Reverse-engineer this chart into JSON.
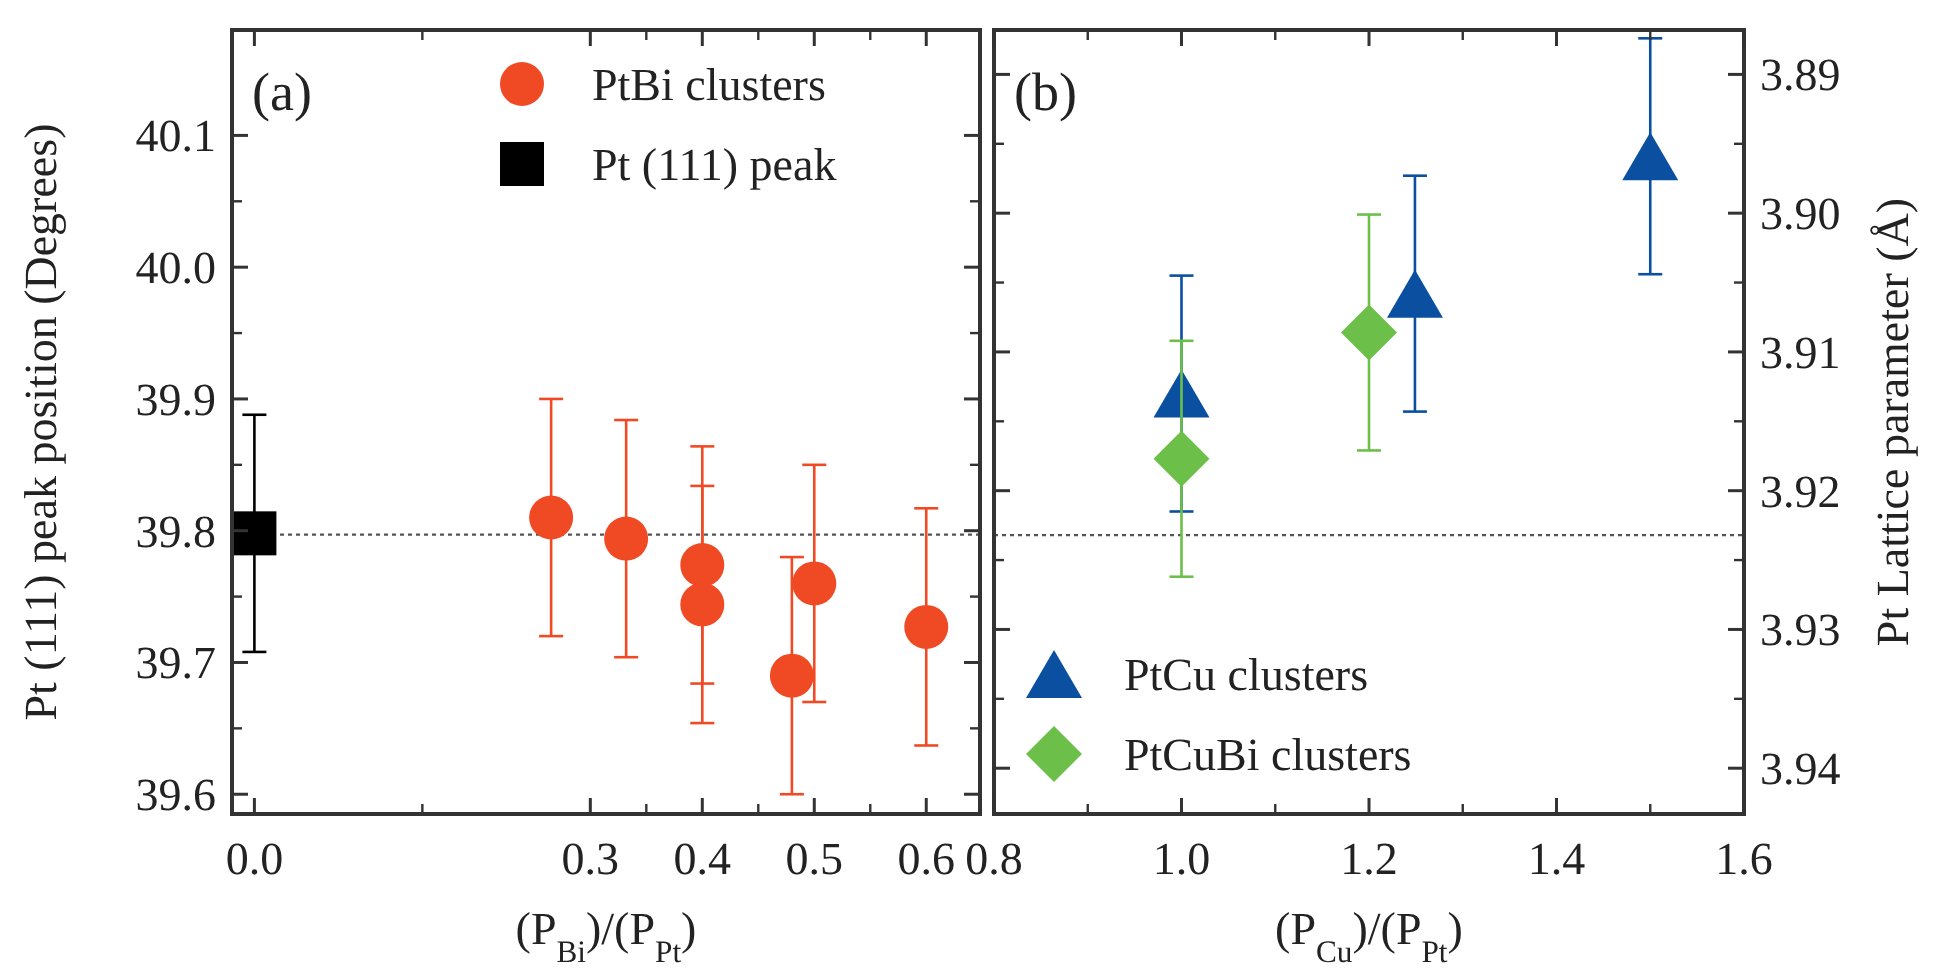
{
  "chart_data": [
    {
      "type": "scatter",
      "xlabel": "(P$_{Bi}$)/(P$_{Pt}$)",
      "ylabel": "Pt (111) peak position (Degrees)",
      "xlim": [
        -0.02,
        0.648
      ],
      "xticks": [
        {
          "value": 0,
          "label": "0.0"
        },
        0.3,
        0.4,
        0.5,
        0.6
      ],
      "ylim": [
        39.585,
        40.18
      ],
      "yticks": [
        39.6,
        39.7,
        39.8,
        39.9,
        {
          "value": 40,
          "label": "40.0"
        },
        40.1
      ],
      "legend": "top right",
      "annotations": [
        "(a)"
      ],
      "ref_lines": [
        {
          "axis": "y",
          "value": 39.797,
          "color": "#555555",
          "line_style": "dotted"
        }
      ],
      "series": [
        {
          "name": "PtBi clusters",
          "color": "#f04a24",
          "marker": "circle",
          "x": [
            0.265,
            0.332,
            0.4,
            0.4,
            0.48,
            0.5,
            0.6
          ],
          "values": [
            39.81,
            39.794,
            39.774,
            39.744,
            39.69,
            39.76,
            39.727
          ],
          "errors": [
            0.09,
            0.09,
            0.09,
            0.09,
            0.09,
            0.09,
            0.09
          ]
        },
        {
          "name": "Pt (111) peak",
          "color": "#000000",
          "marker": "square",
          "x": [
            0
          ],
          "values": [
            39.798
          ],
          "errors": [
            0.09
          ]
        }
      ]
    },
    {
      "type": "scatter",
      "xlabel": "(P$_{Cu}$)/(P$_{Pt}$)",
      "y2label": "Pt Lattice parameter (Å)",
      "xlim": [
        0.8,
        1.6
      ],
      "xticks": [
        0.8,
        {
          "value": 1,
          "label": "1.0"
        },
        1.2,
        1.4,
        1.6
      ],
      "y2lim": [
        3.9433,
        3.8868
      ],
      "y2ticks": [
        3.89,
        {
          "value": 3.9,
          "label": "3.90"
        },
        3.91,
        3.92,
        3.93,
        3.94
      ],
      "legend": "bottom left",
      "annotations": [
        "(b)"
      ],
      "ref_lines": [
        {
          "axis": "y2",
          "value": 3.9232,
          "color": "#555555",
          "line_style": "dotted"
        }
      ],
      "series": [
        {
          "name": "PtCu clusters",
          "color": "#0a4fa0",
          "marker": "triangle",
          "axis": "y2",
          "x": [
            1.0,
            1.249,
            1.5
          ],
          "values": [
            3.913,
            3.9058,
            3.8959
          ],
          "errors": [
            0.0085,
            0.0085,
            0.0085
          ]
        },
        {
          "name": "PtCuBi clusters",
          "color": "#6cc04a",
          "marker": "diamond",
          "axis": "y2",
          "x": [
            1.0,
            1.2
          ],
          "values": [
            3.9177,
            3.9086
          ],
          "errors": [
            0.0085,
            0.0085
          ]
        }
      ]
    }
  ]
}
